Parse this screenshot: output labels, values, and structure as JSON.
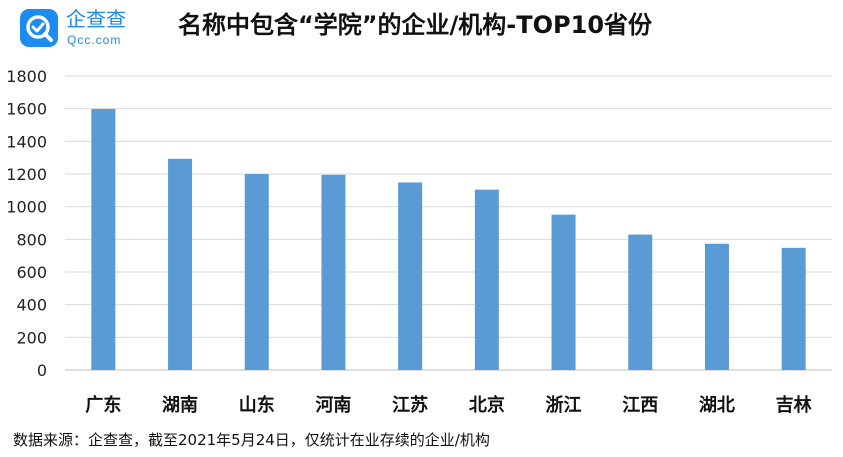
{
  "logo": {
    "name": "企查查",
    "domain": "Qcc.com"
  },
  "title": "名称中包含“学院”的企业/机构-TOP10省份",
  "footer": "数据来源：企查查，截至2021年5月24日，仅统计在业存续的企业/机构",
  "chart_data": {
    "type": "bar",
    "title": "名称中包含“学院”的企业/机构-TOP10省份",
    "xlabel": "",
    "ylabel": "",
    "categories": [
      "广东",
      "湖南",
      "山东",
      "河南",
      "江苏",
      "北京",
      "浙江",
      "江西",
      "湖北",
      "吉林"
    ],
    "values": [
      1598,
      1293,
      1200,
      1195,
      1148,
      1104,
      951,
      829,
      773,
      748
    ],
    "ylim": [
      0,
      1800
    ],
    "yticks": [
      0,
      200,
      400,
      600,
      800,
      1000,
      1200,
      1400,
      1600,
      1800
    ],
    "grid": true,
    "bar_color": "#5b9bd5",
    "grid_color": "#d9d9d9"
  }
}
